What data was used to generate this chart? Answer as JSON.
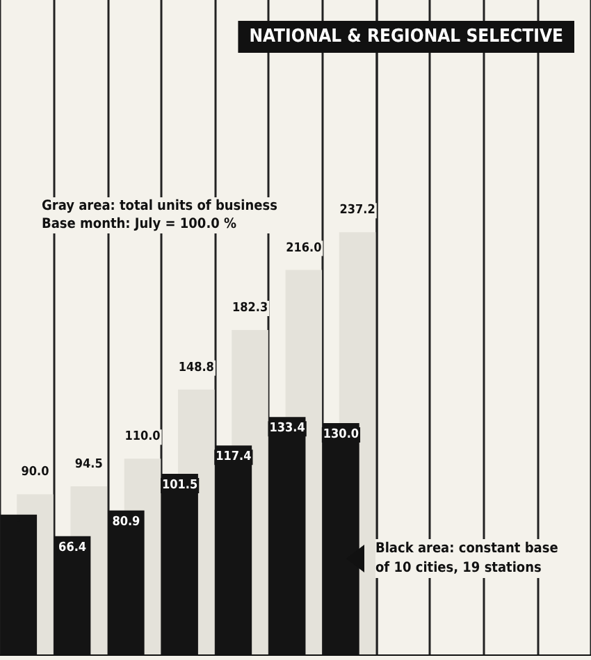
{
  "chart_data": {
    "type": "bar",
    "title": "NATIONAL & REGIONAL SELECTIVE",
    "categories": [
      null,
      null,
      null,
      null,
      null,
      null,
      null
    ],
    "series": [
      {
        "color": "#e4e2da",
        "values": [
          90.0,
          94.5,
          110.0,
          148.8,
          182.3,
          216.0,
          237.2
        ],
        "value_labels": [
          "90.0",
          "94.5",
          "110.0",
          "148.8",
          "182.3",
          "216.0",
          "237.2"
        ]
      },
      {
        "color": "#141414",
        "values": [
          78.5,
          66.4,
          80.9,
          101.5,
          117.4,
          133.4,
          130.0
        ],
        "value_labels": [
          null,
          "66.4",
          "80.9",
          "101.5",
          "117.4",
          "133.4",
          "130.0"
        ]
      }
    ],
    "annotations": [
      "Gray area: total units of business\nBase month: July = 100.0 %",
      "Black area: constant base\nof 10 cities, 19 stations"
    ],
    "grid": "x"
  }
}
